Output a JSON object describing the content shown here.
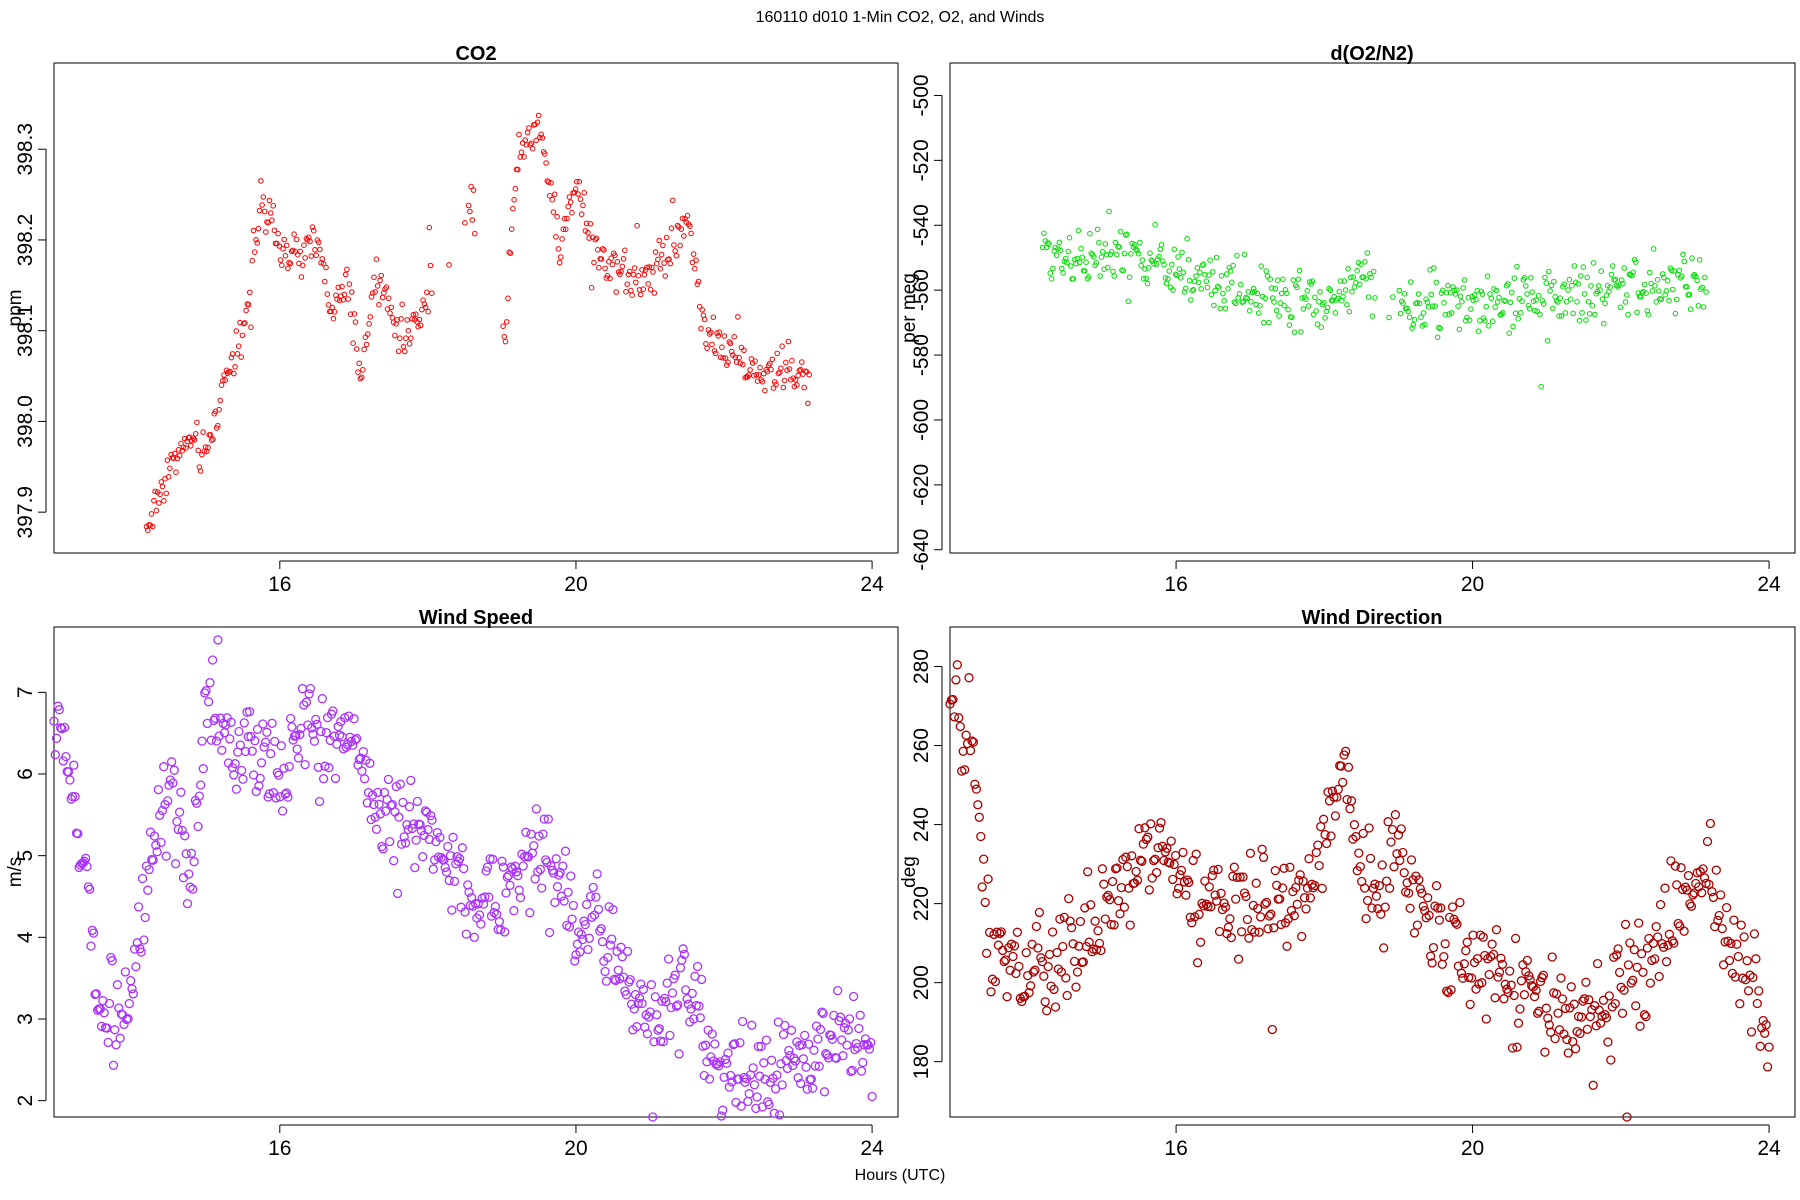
{
  "figure": {
    "title": "160110   d010   1-Min CO2, O2, and Winds",
    "xlabel": "Hours (UTC)"
  },
  "chart_data": [
    {
      "type": "scatter",
      "title": "CO2",
      "ylabel": "ppm",
      "xlabel": "Hours (UTC)",
      "color": "#ff0000",
      "marker_size": "small",
      "xlim": [
        12.95,
        24.35
      ],
      "ylim": [
        397.855,
        398.395
      ],
      "xticks": [
        16,
        20,
        24
      ],
      "yticks": [
        397.9,
        398.0,
        398.1,
        398.2,
        398.3
      ],
      "ytick_labels": [
        "397.9",
        "398.0",
        "398.1",
        "398.2",
        "398.3"
      ],
      "x": [
        14.2,
        14.5,
        14.8,
        15.0,
        15.3,
        15.5,
        15.75,
        16.0,
        16.3,
        16.5,
        16.7,
        16.9,
        17.1,
        17.3,
        17.5,
        17.7,
        17.95,
        18.6,
        19.05,
        19.2,
        19.5,
        19.8,
        20.0,
        20.3,
        20.6,
        20.9,
        21.1,
        21.3,
        21.5,
        21.75,
        22.0,
        22.3,
        22.6,
        22.9,
        23.15
      ],
      "y": [
        397.88,
        397.95,
        397.98,
        397.96,
        398.06,
        398.1,
        398.24,
        398.19,
        398.18,
        398.2,
        398.12,
        398.15,
        398.05,
        398.16,
        398.12,
        398.09,
        398.13,
        398.24,
        398.1,
        398.29,
        398.33,
        398.19,
        398.27,
        398.18,
        398.17,
        398.15,
        398.18,
        398.19,
        398.23,
        398.1,
        398.08,
        398.06,
        398.05,
        398.06,
        398.04
      ],
      "n_points": 540,
      "noise": 0.012,
      "gaps": [
        [
          18.05,
          18.55
        ],
        [
          18.65,
          19.0
        ]
      ]
    },
    {
      "type": "scatter",
      "title": "d(O2/N2)",
      "ylabel": "per meg",
      "xlabel": "Hours (UTC)",
      "color": "#00dd00",
      "marker_size": "small",
      "xlim": [
        12.95,
        24.35
      ],
      "ylim": [
        -641,
        -490
      ],
      "xticks": [
        16,
        20,
        24
      ],
      "yticks": [
        -640,
        -620,
        -600,
        -580,
        -560,
        -540,
        -520,
        -500
      ],
      "ytick_labels": [
        "-640",
        "-620",
        "-600",
        "-580",
        "-560",
        "-540",
        "-520",
        "-500"
      ],
      "x": [
        14.2,
        15.0,
        15.9,
        16.5,
        17.0,
        17.5,
        18.0,
        18.5,
        19.05,
        19.5,
        20.0,
        20.5,
        21.0,
        21.5,
        22.0,
        22.5,
        23.0,
        23.15
      ],
      "y": [
        -548,
        -550,
        -552,
        -558,
        -560,
        -562,
        -565,
        -556,
        -566,
        -565,
        -565,
        -564,
        -562,
        -561,
        -560,
        -559,
        -558,
        -560
      ],
      "n_points": 520,
      "noise": 4.5,
      "gaps": [
        [
          18.7,
          19.0
        ]
      ]
    },
    {
      "type": "scatter",
      "title": "Wind Speed",
      "ylabel": "m/s",
      "xlabel": "Hours (UTC)",
      "color": "#aa33ff",
      "marker_size": "large",
      "xlim": [
        12.95,
        24.35
      ],
      "ylim": [
        1.8,
        7.8
      ],
      "xticks": [
        16,
        20,
        24
      ],
      "yticks": [
        2,
        3,
        4,
        5,
        6,
        7
      ],
      "ytick_labels": [
        "2",
        "3",
        "4",
        "5",
        "6",
        "7"
      ],
      "x": [
        12.95,
        13.1,
        13.25,
        13.4,
        13.6,
        13.8,
        14.0,
        14.2,
        14.5,
        14.8,
        15.0,
        15.3,
        15.6,
        16.0,
        16.3,
        16.6,
        17.0,
        17.3,
        17.6,
        18.0,
        18.4,
        18.8,
        19.2,
        19.6,
        20.0,
        20.3,
        20.6,
        21.0,
        21.5,
        22.0,
        22.3,
        22.6,
        23.0,
        23.4,
        23.7,
        24.0
      ],
      "y": [
        6.6,
        6.4,
        5.3,
        4.6,
        3.0,
        3.2,
        3.3,
        4.5,
        5.8,
        4.6,
        6.8,
        6.4,
        6.2,
        6.0,
        6.6,
        6.4,
        6.6,
        5.5,
        5.4,
        5.3,
        4.8,
        4.3,
        4.7,
        5.2,
        4.1,
        4.3,
        3.6,
        3.0,
        3.4,
        2.2,
        2.2,
        2.3,
        2.5,
        2.7,
        2.9,
        2.6
      ],
      "n_points": 620,
      "noise": 0.28,
      "gaps": []
    },
    {
      "type": "scatter",
      "title": "Wind Direction",
      "ylabel": "deg",
      "xlabel": "Hours (UTC)",
      "color": "#aa0000",
      "marker_size": "large",
      "xlim": [
        12.95,
        24.35
      ],
      "ylim": [
        166,
        290
      ],
      "xticks": [
        16,
        20,
        24
      ],
      "yticks": [
        180,
        200,
        220,
        240,
        260,
        280
      ],
      "ytick_labels": [
        "180",
        "200",
        "220",
        "240",
        "260",
        "280"
      ],
      "x": [
        12.95,
        13.2,
        13.5,
        13.9,
        14.3,
        14.7,
        15.1,
        15.5,
        15.8,
        16.2,
        16.6,
        17.0,
        17.4,
        17.8,
        18.1,
        18.3,
        18.5,
        18.8,
        19.0,
        19.3,
        19.6,
        20.0,
        20.4,
        20.8,
        21.2,
        21.6,
        22.0,
        22.4,
        22.8,
        23.0,
        23.2,
        23.5,
        23.8,
        24.0
      ],
      "y": [
        270,
        262,
        210,
        200,
        205,
        210,
        218,
        232,
        235,
        222,
        218,
        220,
        218,
        225,
        245,
        256,
        230,
        225,
        238,
        215,
        212,
        205,
        202,
        198,
        190,
        190,
        197,
        205,
        218,
        225,
        226,
        210,
        197,
        183
      ],
      "n_points": 560,
      "noise": 6.5,
      "gaps": []
    }
  ]
}
